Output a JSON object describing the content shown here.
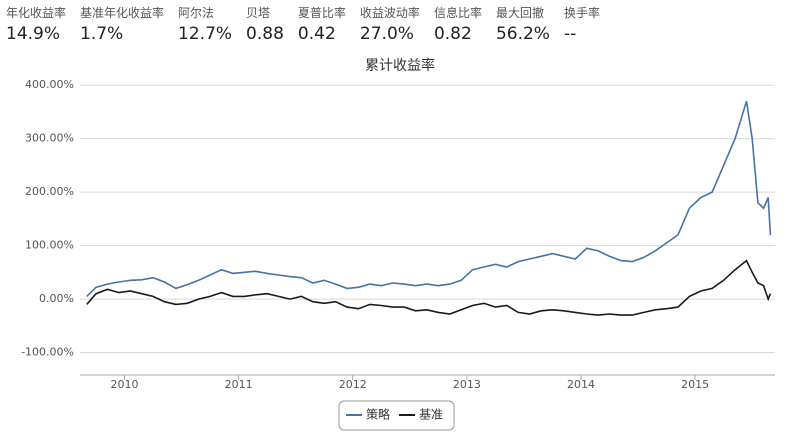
{
  "header": {
    "metrics": [
      {
        "label": "年化收益率",
        "value": "14.9%"
      },
      {
        "label": "基准年化收益率",
        "value": "1.7%"
      },
      {
        "label": "阿尔法",
        "value": "12.7%"
      },
      {
        "label": "贝塔",
        "value": "0.88"
      },
      {
        "label": "夏普比率",
        "value": "0.42"
      },
      {
        "label": "收益波动率",
        "value": "27.0%"
      },
      {
        "label": "信息比率",
        "value": "0.82"
      },
      {
        "label": "最大回撤",
        "value": "56.2%"
      },
      {
        "label": "换手率",
        "value": "--"
      }
    ]
  },
  "chart_data": {
    "type": "line",
    "title": "累计收益率",
    "x": [
      2009.67,
      2009.75,
      2009.85,
      2009.95,
      2010.05,
      2010.15,
      2010.25,
      2010.35,
      2010.45,
      2010.55,
      2010.65,
      2010.75,
      2010.85,
      2010.95,
      2011.05,
      2011.15,
      2011.25,
      2011.35,
      2011.45,
      2011.55,
      2011.65,
      2011.75,
      2011.85,
      2011.95,
      2012.05,
      2012.15,
      2012.25,
      2012.35,
      2012.45,
      2012.55,
      2012.65,
      2012.75,
      2012.85,
      2012.95,
      2013.05,
      2013.15,
      2013.25,
      2013.35,
      2013.45,
      2013.55,
      2013.65,
      2013.75,
      2013.85,
      2013.95,
      2014.05,
      2014.15,
      2014.25,
      2014.35,
      2014.45,
      2014.55,
      2014.65,
      2014.75,
      2014.85,
      2014.95,
      2015.05,
      2015.15,
      2015.25,
      2015.35,
      2015.45,
      2015.5,
      2015.55,
      2015.6,
      2015.64,
      2015.66
    ],
    "series": [
      {
        "name": "策略",
        "color": "#4572a7",
        "values": [
          5,
          22,
          28,
          32,
          35,
          36,
          40,
          32,
          20,
          27,
          35,
          45,
          55,
          48,
          50,
          52,
          48,
          45,
          42,
          40,
          30,
          35,
          28,
          20,
          22,
          28,
          25,
          30,
          28,
          25,
          28,
          25,
          28,
          35,
          55,
          60,
          65,
          60,
          70,
          75,
          80,
          85,
          80,
          75,
          95,
          90,
          80,
          72,
          70,
          78,
          90,
          105,
          120,
          170,
          190,
          200,
          250,
          300,
          370,
          300,
          180,
          170,
          190,
          120
        ]
      },
      {
        "name": "基准",
        "color": "#1a1a1a",
        "values": [
          -10,
          10,
          18,
          12,
          15,
          10,
          5,
          -5,
          -10,
          -8,
          0,
          5,
          12,
          5,
          5,
          8,
          10,
          5,
          0,
          5,
          -5,
          -8,
          -5,
          -15,
          -18,
          -10,
          -12,
          -15,
          -15,
          -22,
          -20,
          -25,
          -28,
          -20,
          -12,
          -8,
          -15,
          -12,
          -25,
          -28,
          -22,
          -20,
          -22,
          -25,
          -28,
          -30,
          -28,
          -30,
          -30,
          -25,
          -20,
          -18,
          -15,
          5,
          15,
          20,
          35,
          55,
          72,
          50,
          30,
          25,
          0,
          10
        ]
      }
    ],
    "xlim": [
      2009.61,
      2015.7
    ],
    "xticks": [
      2010,
      2011,
      2012,
      2013,
      2014,
      2015
    ],
    "ylim": [
      -142,
      419
    ],
    "yticks": [
      {
        "value": -100,
        "label": "-100.00%"
      },
      {
        "value": 0,
        "label": "0.00%"
      },
      {
        "value": 100,
        "label": "100.00%"
      },
      {
        "value": 200,
        "label": "200.00%"
      },
      {
        "value": 300,
        "label": "300.00%"
      },
      {
        "value": 400,
        "label": "400.00%"
      }
    ],
    "grid": true,
    "legend": "bottom"
  }
}
